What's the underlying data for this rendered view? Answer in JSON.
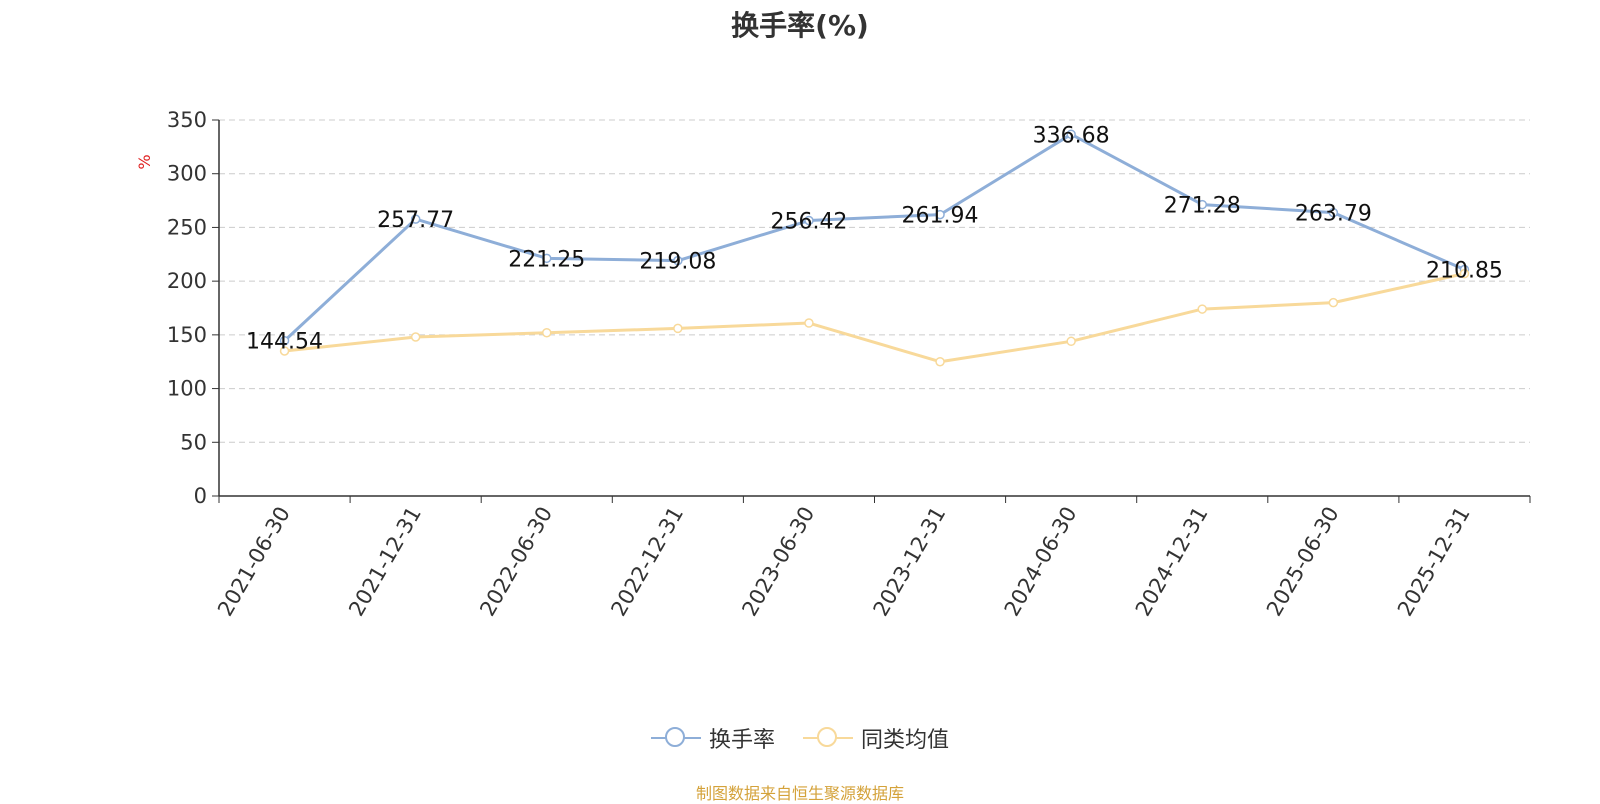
{
  "title": "换手率(%)",
  "source": "制图数据来自恒生聚源数据库",
  "colors": {
    "series1": "#8eaed8",
    "series2": "#f8d99a",
    "unit": "#e02020",
    "axis": "#333333",
    "grid": "#cccccc"
  },
  "chart_data": {
    "type": "line",
    "title": "换手率(%)",
    "ylabel": "%",
    "ylim": [
      0,
      350
    ],
    "yticks": [
      0,
      50,
      100,
      150,
      200,
      250,
      300,
      350
    ],
    "grid": true,
    "legend_position": "bottom-center",
    "categories": [
      "2021-06-30",
      "2021-12-31",
      "2022-06-30",
      "2022-12-31",
      "2023-06-30",
      "2023-12-31",
      "2024-06-30",
      "2024-12-31",
      "2025-06-30",
      "2025-12-31"
    ],
    "series": [
      {
        "name": "换手率",
        "values": [
          144.54,
          257.77,
          221.25,
          219.08,
          256.42,
          261.94,
          336.68,
          271.28,
          263.79,
          210.85
        ],
        "labels": [
          "144.54",
          "257.77",
          "221.25",
          "219.08",
          "256.42",
          "261.94",
          "336.68",
          "271.28",
          "263.79",
          "210.85"
        ]
      },
      {
        "name": "同类均值",
        "values": [
          135,
          148,
          152,
          156,
          161,
          125,
          144,
          174,
          180,
          207
        ]
      }
    ]
  }
}
